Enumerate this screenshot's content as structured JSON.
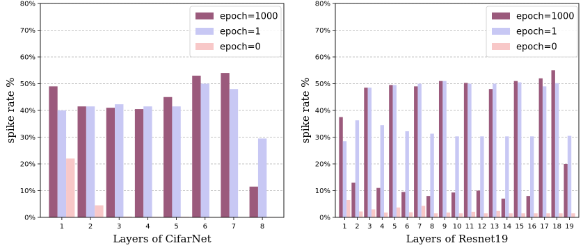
{
  "chart_data": [
    {
      "type": "bar",
      "xlabel": "Layers of CifarNet",
      "ylabel": "spike rate %",
      "ylim": [
        0,
        80
      ],
      "yticks": [
        "0%",
        "10%",
        "20%",
        "30%",
        "40%",
        "50%",
        "60%",
        "70%",
        "80%"
      ],
      "grid": "horizontal dashed",
      "legend_position": "top-right",
      "categories": [
        "1",
        "2",
        "3",
        "4",
        "5",
        "6",
        "7",
        "8"
      ],
      "series": [
        {
          "name": "epoch=1000",
          "color": "#9b5a7c",
          "values": [
            49,
            41.5,
            41,
            40.5,
            45,
            53,
            54,
            11.5
          ]
        },
        {
          "name": "epoch=1",
          "color": "#c8c8f4",
          "values": [
            40,
            41.5,
            42.3,
            41.5,
            41.5,
            50,
            48,
            29.5
          ]
        },
        {
          "name": "epoch=0",
          "color": "#f8c8c8",
          "values": [
            22,
            4.5,
            0.3,
            0.2,
            0.2,
            0.1,
            0.1,
            0.1
          ]
        }
      ]
    },
    {
      "type": "bar",
      "xlabel": "Layers of Resnet19",
      "ylabel": "spike rate %",
      "ylim": [
        0,
        80
      ],
      "yticks": [
        "0%",
        "10%",
        "20%",
        "30%",
        "40%",
        "50%",
        "60%",
        "70%",
        "80%"
      ],
      "grid": "horizontal dashed",
      "legend_position": "top-right",
      "categories": [
        "1",
        "2",
        "3",
        "4",
        "5",
        "6",
        "7",
        "8",
        "9",
        "10",
        "11",
        "12",
        "13",
        "14",
        "15",
        "16",
        "17",
        "18",
        "19"
      ],
      "series": [
        {
          "name": "epoch=1000",
          "color": "#9b5a7c",
          "values": [
            37.5,
            13,
            48.5,
            11,
            49.5,
            9.5,
            49,
            8,
            51,
            9.3,
            50.3,
            10,
            48,
            7,
            51,
            8,
            52,
            55,
            20
          ]
        },
        {
          "name": "epoch=1",
          "color": "#c8c8f4",
          "values": [
            28.5,
            36.3,
            48.5,
            34.5,
            49.5,
            32.2,
            50,
            31.3,
            51,
            30.3,
            50,
            30.3,
            50,
            30.3,
            50.5,
            30.3,
            49,
            50.2,
            30.5
          ]
        },
        {
          "name": "epoch=0",
          "color": "#f8c8c8",
          "values": [
            6.5,
            2.2,
            3,
            1.8,
            3.7,
            1.9,
            4.3,
            1.5,
            1.8,
            1.5,
            2.1,
            1.5,
            2.4,
            1.5,
            1.5,
            1.5,
            1.5,
            1.5,
            1.5
          ]
        }
      ]
    }
  ]
}
